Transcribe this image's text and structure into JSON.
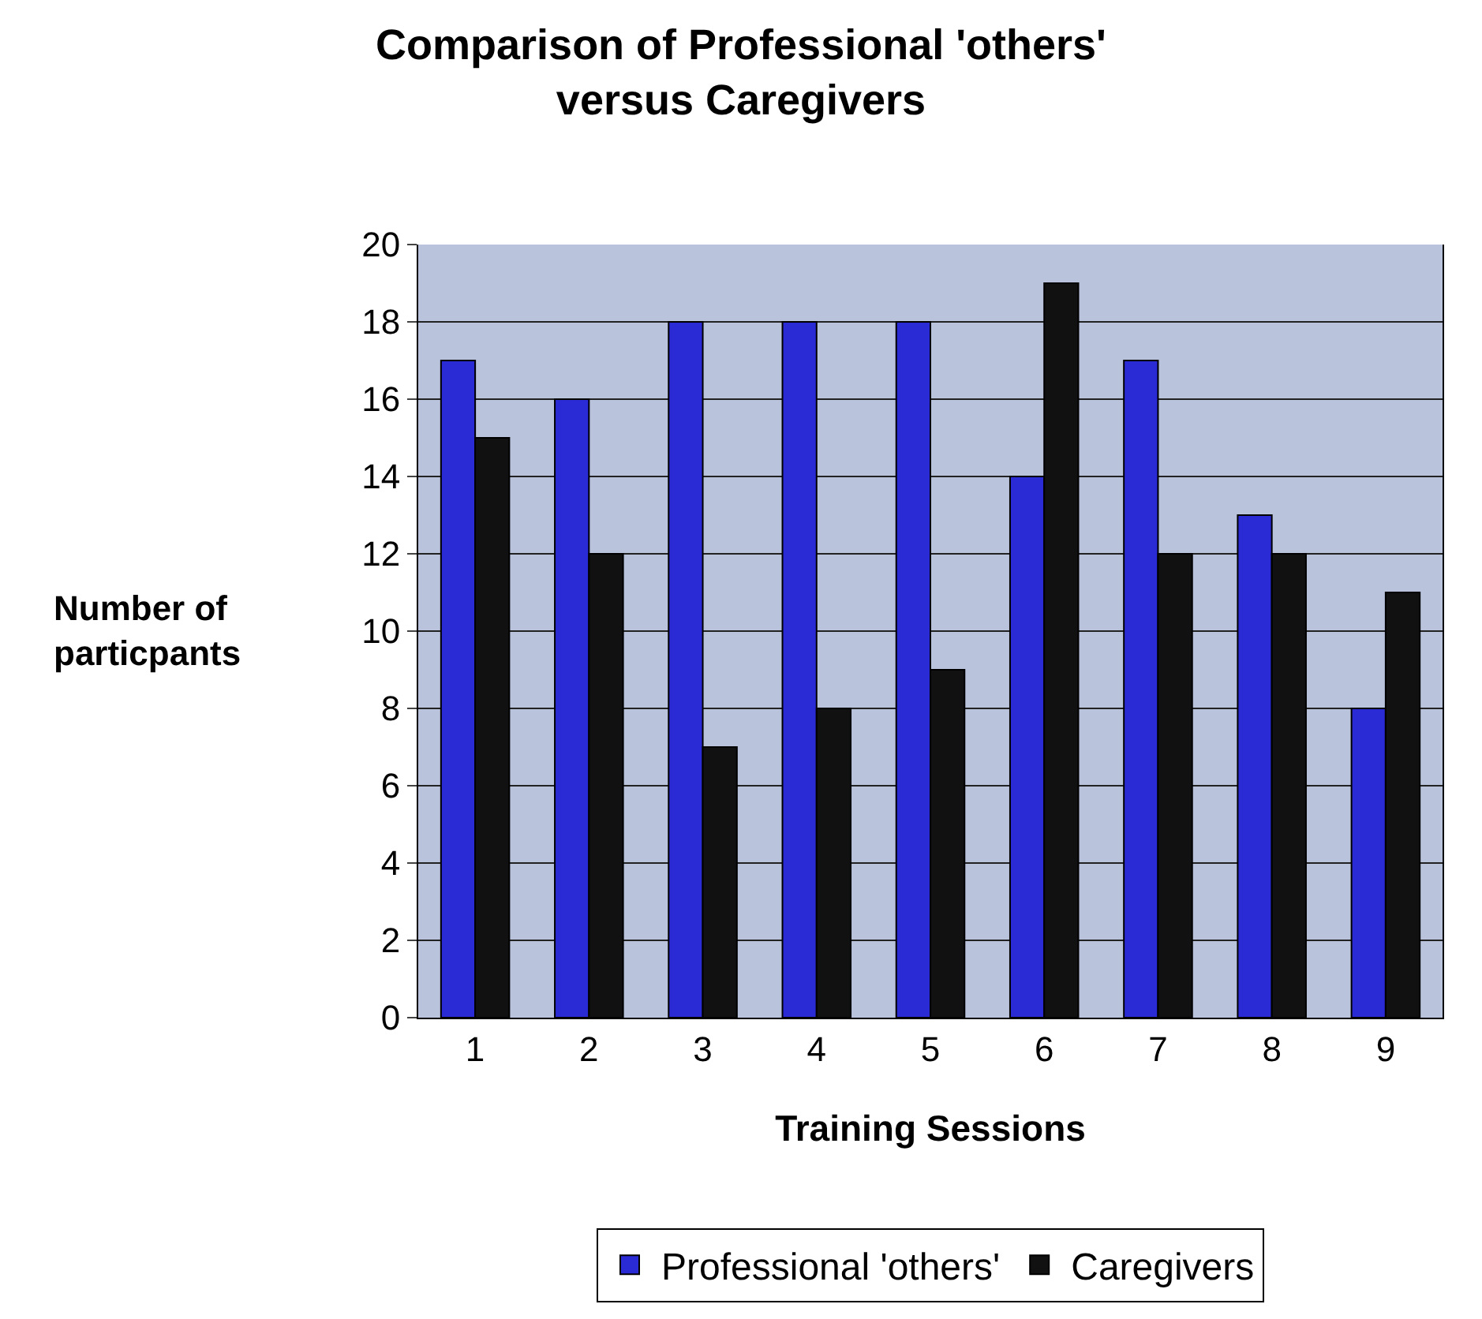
{
  "chart_data": {
    "type": "bar",
    "title": "Comparison of Professional 'others'\nversus Caregivers",
    "xlabel": "Training Sessions",
    "ylabel": "Number of\nparticpants",
    "categories": [
      "1",
      "2",
      "3",
      "4",
      "5",
      "6",
      "7",
      "8",
      "9"
    ],
    "series": [
      {
        "name": "Professional 'others'",
        "color": "#2b2bd6",
        "values": [
          17,
          16,
          18,
          18,
          18,
          14,
          17,
          13,
          8
        ]
      },
      {
        "name": "Caregivers",
        "color": "#111111",
        "values": [
          15,
          12,
          7,
          8,
          9,
          19,
          12,
          12,
          11
        ]
      }
    ],
    "ylim": [
      0,
      20
    ],
    "yticks": [
      0,
      2,
      4,
      6,
      8,
      10,
      12,
      14,
      16,
      18,
      20
    ],
    "grid": "y",
    "legend": "bottom"
  }
}
